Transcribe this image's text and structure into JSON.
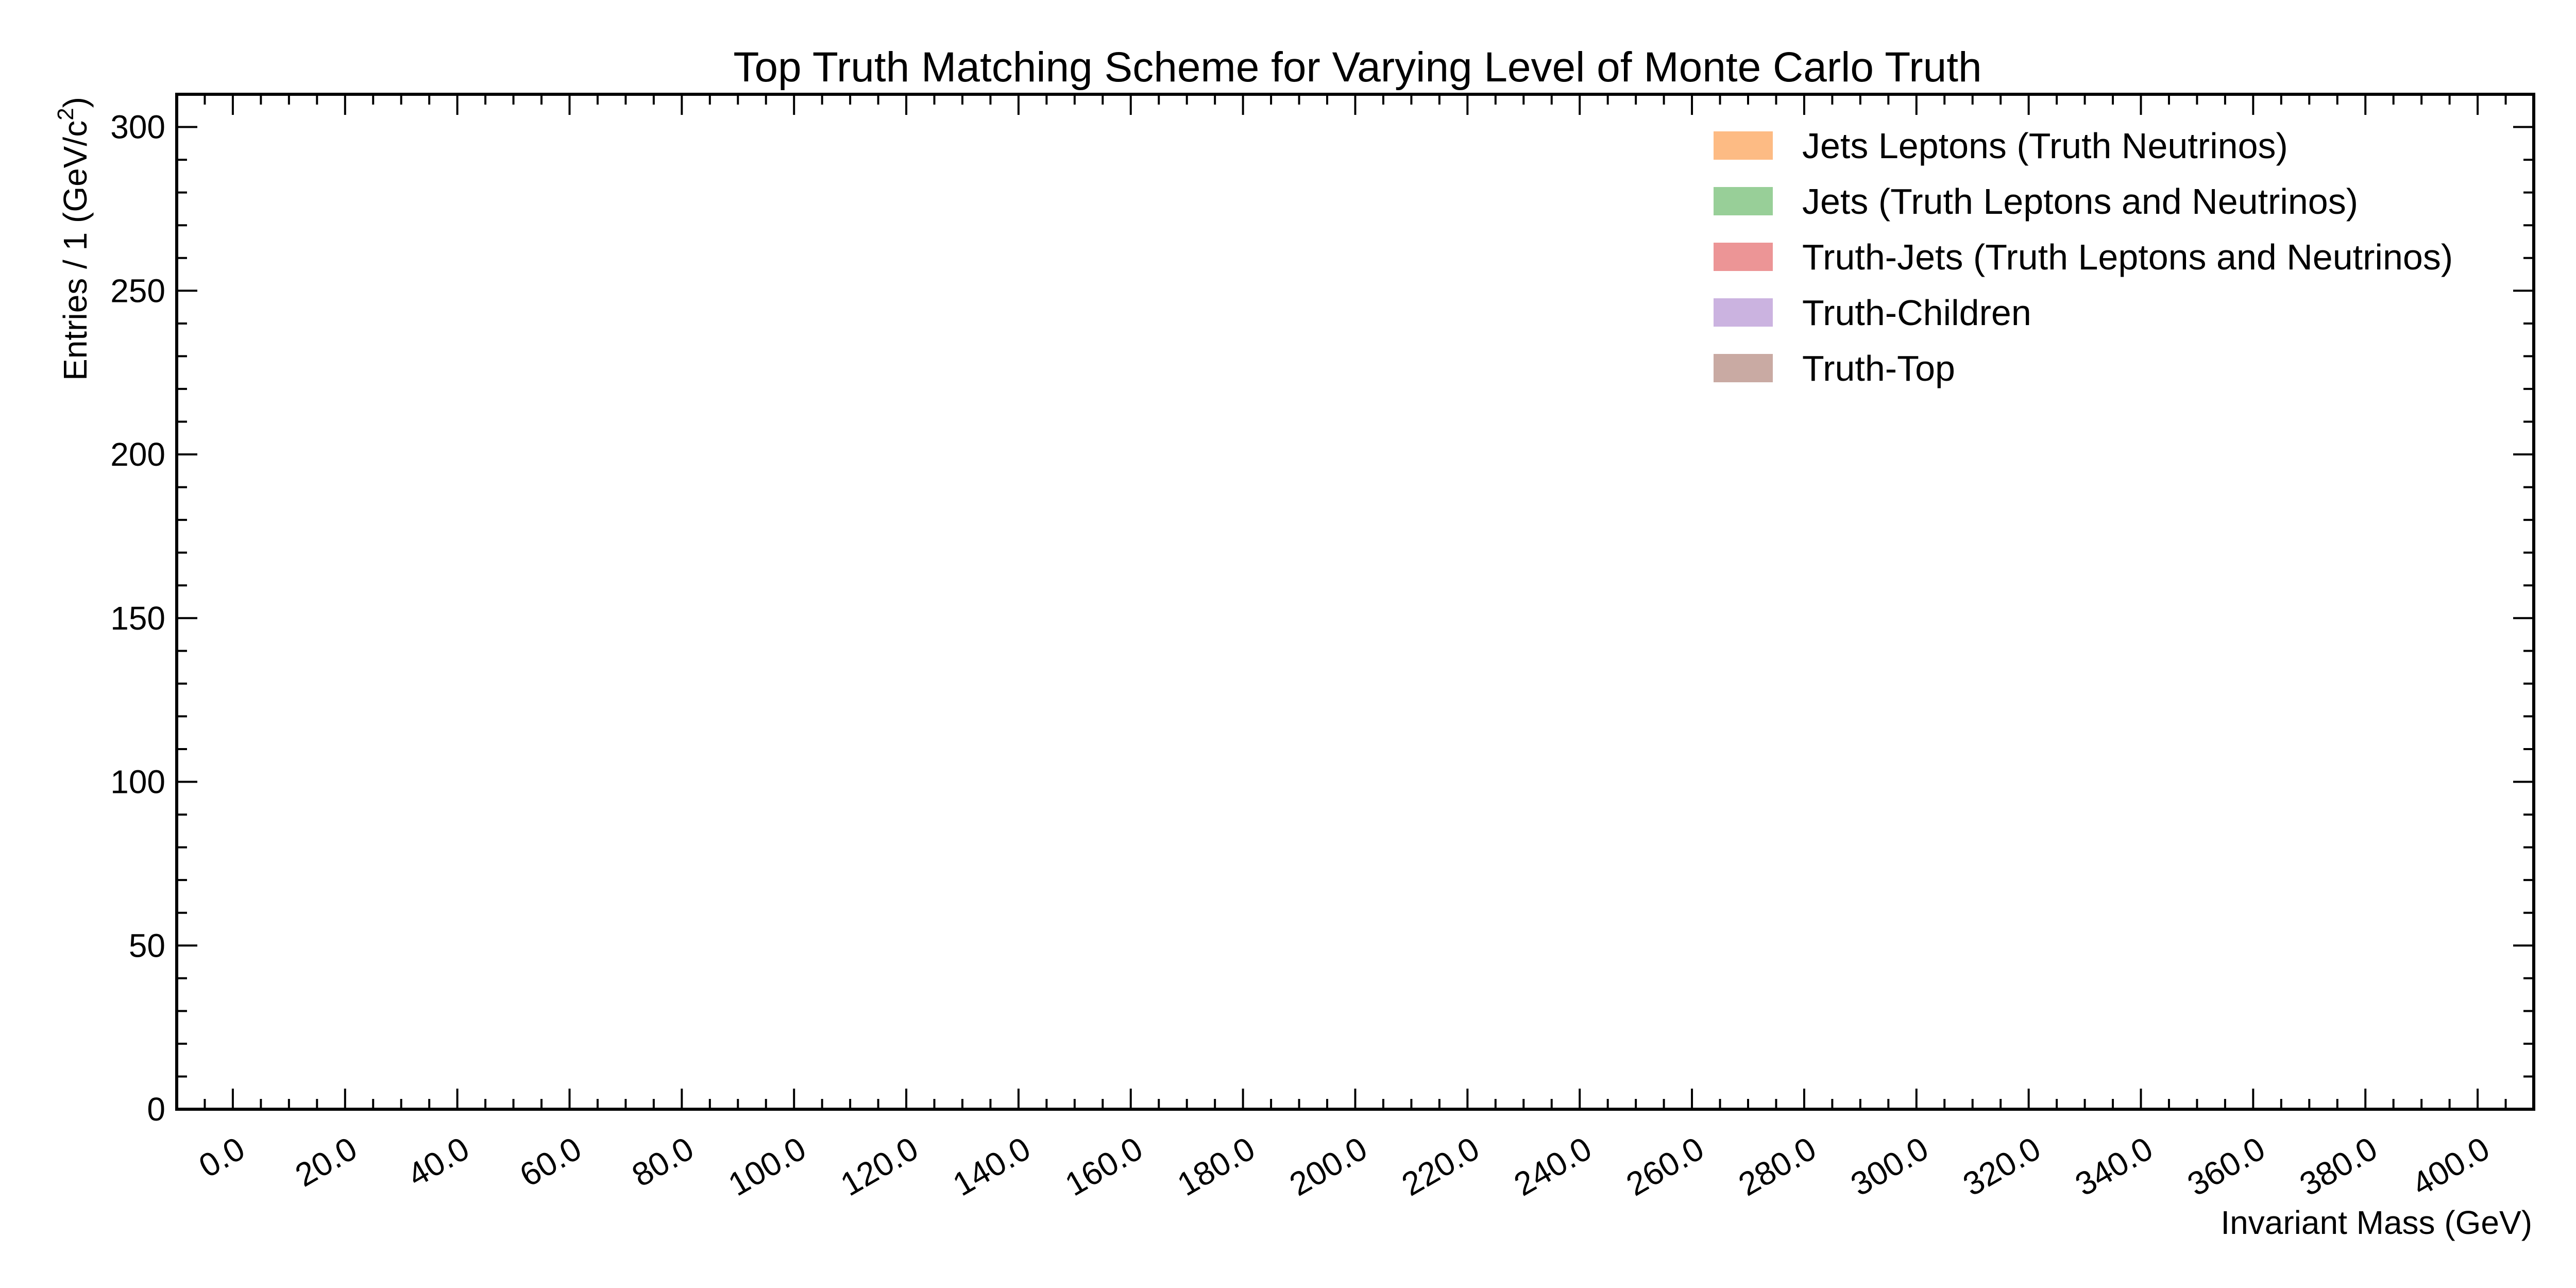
{
  "chart_data": {
    "type": "histogram",
    "title": "Top Truth Matching Scheme for Varying Level of Monte Carlo Truth",
    "xlabel": "Invariant Mass (GeV)",
    "ylabel_prefix": "Entries  / 1 (GeV/c",
    "ylabel_sup": "2",
    "ylabel_suffix": ")",
    "xlim": [
      -10,
      410
    ],
    "ylim": [
      0,
      310
    ],
    "bin_width": 1,
    "x_start": 0,
    "x_ticks": [
      "0.0",
      "20.0",
      "40.0",
      "60.0",
      "80.0",
      "100.0",
      "120.0",
      "140.0",
      "160.0",
      "180.0",
      "200.0",
      "220.0",
      "240.0",
      "260.0",
      "280.0",
      "300.0",
      "320.0",
      "340.0",
      "360.0",
      "380.0",
      "400.0"
    ],
    "y_ticks": [
      "0",
      "50",
      "100",
      "150",
      "200",
      "250",
      "300"
    ],
    "grid": false,
    "legend_position": "top-right",
    "series": [
      {
        "name": "Jets Leptons (Truth Neutrinos)",
        "color": "#fdbb84",
        "values": [
          0,
          0,
          0,
          0,
          0,
          0,
          0,
          0,
          0,
          0,
          0,
          0,
          0,
          0,
          0,
          0,
          0,
          0,
          0,
          0,
          0,
          0,
          0,
          0,
          0,
          0,
          0,
          0,
          0,
          0,
          0,
          0,
          0,
          0,
          0,
          0,
          0,
          0,
          0,
          0,
          0,
          0,
          0,
          0,
          0,
          0,
          0,
          0,
          0,
          0,
          0,
          0,
          0,
          0,
          0,
          0,
          0,
          0,
          0,
          0,
          0,
          0,
          0,
          0,
          0,
          0,
          0,
          0,
          0,
          0,
          0,
          0,
          0,
          0,
          0,
          0,
          0,
          0,
          0,
          0,
          0,
          0,
          0,
          0,
          0,
          0,
          0,
          0,
          0,
          0,
          0,
          0,
          0,
          0,
          0,
          0,
          0,
          0,
          0,
          0,
          0,
          0,
          0,
          0,
          0,
          0,
          0,
          0,
          0,
          0,
          0,
          0,
          0,
          0,
          0,
          0,
          0,
          0,
          0,
          0,
          0,
          0,
          0,
          0,
          0,
          0,
          0,
          0,
          0,
          0,
          0,
          0,
          0,
          0,
          0,
          0,
          0,
          0,
          0,
          0,
          0,
          0,
          0,
          0,
          0,
          0,
          0,
          0,
          0,
          0,
          0,
          0,
          0,
          0,
          0,
          0,
          0,
          0,
          0,
          0,
          0,
          0,
          0,
          0,
          0,
          0,
          0,
          0,
          0,
          0,
          0,
          0,
          0,
          0,
          0,
          0,
          0,
          0,
          0,
          0,
          0,
          0,
          0,
          0,
          0,
          0,
          0,
          0,
          0,
          0,
          0,
          0,
          0,
          0,
          0,
          0,
          0,
          0,
          0,
          0,
          0,
          0,
          0,
          0,
          0,
          0,
          0,
          0,
          0,
          0,
          0,
          0,
          0,
          0,
          0,
          0,
          0,
          0,
          0,
          0,
          0,
          0,
          0,
          0,
          0,
          0,
          0,
          0,
          0,
          0,
          0,
          0,
          0,
          0,
          0,
          0,
          0,
          0,
          0,
          0,
          0,
          0,
          0,
          0,
          0,
          0,
          0,
          0,
          0,
          0,
          0,
          0,
          0,
          0,
          0,
          0,
          0,
          0,
          0,
          0,
          0,
          0,
          0,
          0,
          0,
          0,
          0,
          0,
          0,
          0,
          0,
          0,
          0,
          0,
          0,
          0,
          0,
          0,
          0,
          0,
          0,
          0,
          0,
          0,
          0,
          0,
          0,
          0,
          0,
          0,
          0,
          0,
          0,
          0,
          0,
          0,
          0,
          0,
          0,
          0,
          0,
          0,
          0,
          0,
          0,
          0,
          0,
          0,
          0,
          0,
          0,
          0,
          0,
          0,
          0,
          0,
          0,
          0,
          0,
          0,
          0,
          0,
          0,
          0,
          0,
          0,
          0,
          0,
          0,
          0,
          0,
          0,
          0,
          0,
          0,
          0,
          0,
          0,
          0,
          0,
          0,
          0,
          0,
          0,
          0,
          0,
          0,
          0,
          0,
          0,
          0,
          0,
          0,
          0,
          0,
          0,
          0,
          0,
          0,
          0,
          0,
          0,
          0,
          0,
          0,
          0,
          0,
          0,
          0,
          0,
          0,
          0,
          0,
          0,
          0,
          0,
          0,
          0,
          0,
          0,
          0,
          0,
          0,
          0,
          0,
          0,
          0,
          0,
          0,
          0,
          0,
          0,
          0,
          0,
          0,
          0,
          0,
          0,
          0,
          0,
          0,
          0,
          0,
          0,
          0,
          0,
          0,
          0,
          0,
          0,
          0,
          0,
          0,
          0,
          0,
          0,
          0,
          0,
          0,
          0,
          0,
          0,
          0,
          0,
          0,
          0,
          0,
          0,
          0,
          0,
          0,
          0,
          0,
          0,
          0,
          0,
          0,
          0,
          0,
          0,
          0,
          0,
          0,
          0,
          0,
          0,
          0,
          0,
          0,
          0,
          0
        ]
      },
      {
        "name": "Jets (Truth Leptons and Neutrinos)",
        "color": "#98cf98",
        "values": []
      },
      {
        "name": "Truth-Jets (Truth Leptons and Neutrinos)",
        "color": "#ec9596",
        "values": []
      },
      {
        "name": "Truth-Children",
        "color": "#cbb3e0",
        "values": []
      },
      {
        "name": "Truth-Top",
        "color": "#c9aaa3",
        "values": []
      }
    ]
  }
}
